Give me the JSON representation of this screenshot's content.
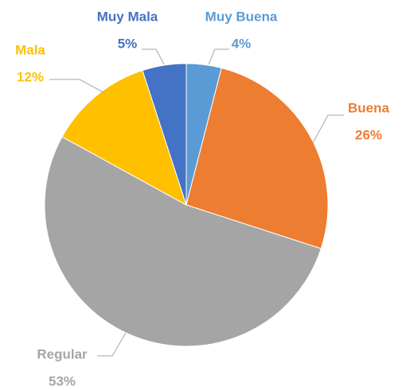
{
  "chart_data": {
    "type": "pie",
    "categories": [
      "Muy Buena",
      "Buena",
      "Regular",
      "Mala",
      "Muy Mala"
    ],
    "values": [
      4,
      26,
      53,
      12,
      5
    ],
    "value_labels": [
      "4%",
      "26%",
      "53%",
      "12%",
      "5%"
    ],
    "colors": [
      "#5b9bd5",
      "#ed7d31",
      "#a5a5a5",
      "#ffc000",
      "#4472c4"
    ]
  }
}
